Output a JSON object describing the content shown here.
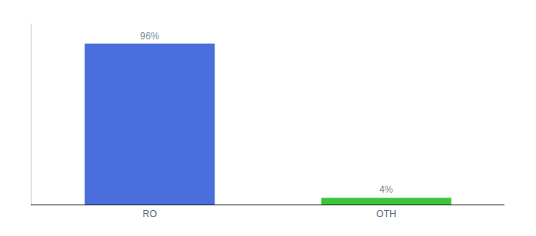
{
  "chart_data": {
    "type": "bar",
    "categories": [
      "RO",
      "OTH"
    ],
    "values": [
      96,
      4
    ],
    "value_labels": [
      "96%",
      "4%"
    ],
    "colors": [
      "#4a6edb",
      "#3ac63a"
    ],
    "ylim": [
      0,
      108
    ],
    "data_labels": true,
    "tick_labels": "x",
    "grid": false
  }
}
